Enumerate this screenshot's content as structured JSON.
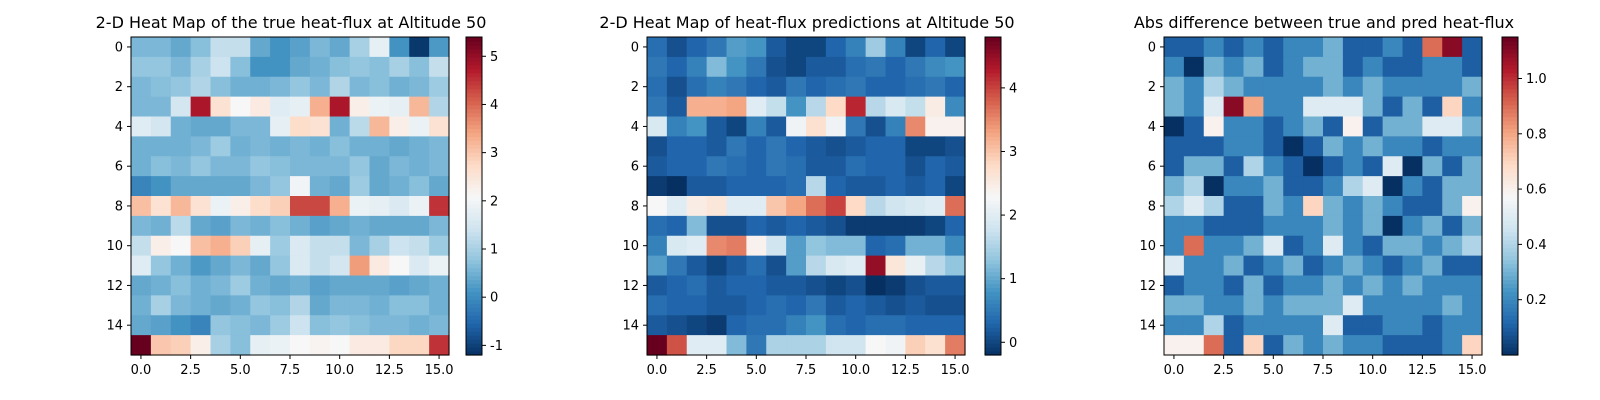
{
  "chart_data": [
    {
      "type": "heatmap",
      "title": "2-D Heat Map of the true heat-flux at Altitude 50",
      "xlabel": "",
      "ylabel": "",
      "xticks": [
        "0.0",
        "2.5",
        "5.0",
        "7.5",
        "10.0",
        "12.5",
        "15.0"
      ],
      "yticks": [
        "0",
        "2",
        "4",
        "6",
        "8",
        "10",
        "12",
        "14"
      ],
      "colorbar": {
        "colormap": "RdBu_r",
        "vmin": -1.2,
        "vmax": 5.4,
        "ticks": [
          "-1",
          "0",
          "1",
          "2",
          "3",
          "4",
          "5"
        ]
      },
      "values": [
        [
          0.6,
          0.6,
          0.4,
          0.7,
          1.3,
          1.3,
          0.4,
          0.1,
          0.3,
          0.6,
          0.4,
          1.0,
          1.8,
          0.1,
          -1.1,
          0.2
        ],
        [
          0.8,
          0.8,
          0.6,
          1.0,
          1.4,
          0.7,
          0.1,
          0.1,
          0.4,
          0.5,
          0.7,
          0.8,
          0.7,
          1.0,
          0.7,
          1.3
        ],
        [
          0.6,
          0.7,
          0.8,
          1.1,
          0.7,
          0.5,
          0.5,
          0.6,
          0.8,
          0.6,
          1.1,
          0.6,
          0.7,
          0.5,
          0.6,
          0.9
        ],
        [
          0.6,
          0.6,
          1.5,
          4.8,
          2.6,
          2.1,
          2.4,
          1.7,
          1.8,
          3.3,
          4.8,
          2.3,
          1.9,
          1.8,
          3.2,
          1.1
        ],
        [
          1.7,
          1.5,
          0.5,
          0.4,
          0.4,
          0.6,
          0.6,
          1.8,
          2.7,
          2.6,
          0.5,
          1.2,
          3.2,
          2.3,
          1.9,
          2.6
        ],
        [
          0.5,
          0.5,
          0.5,
          0.6,
          0.9,
          0.5,
          0.6,
          0.5,
          0.6,
          0.5,
          0.7,
          0.5,
          0.5,
          0.4,
          0.5,
          0.6
        ],
        [
          0.5,
          0.7,
          0.6,
          0.8,
          0.6,
          0.6,
          0.8,
          0.7,
          0.6,
          0.6,
          0.6,
          0.8,
          0.4,
          0.6,
          0.5,
          0.6
        ],
        [
          -0.1,
          0.1,
          0.4,
          0.4,
          0.4,
          0.4,
          0.6,
          0.8,
          2.0,
          0.5,
          0.4,
          0.9,
          0.4,
          0.5,
          0.7,
          0.4
        ],
        [
          3.1,
          2.6,
          3.2,
          2.6,
          1.9,
          2.3,
          2.7,
          2.9,
          4.3,
          4.3,
          3.3,
          1.9,
          1.8,
          1.6,
          1.9,
          4.5
        ],
        [
          0.6,
          0.5,
          1.2,
          0.4,
          0.3,
          0.6,
          0.5,
          0.7,
          0.5,
          0.3,
          0.4,
          0.5,
          0.4,
          0.4,
          0.4,
          0.6
        ],
        [
          1.3,
          2.3,
          2.1,
          3.1,
          3.3,
          2.9,
          1.8,
          0.9,
          1.6,
          1.3,
          1.3,
          0.6,
          1.0,
          1.4,
          1.3,
          0.9
        ],
        [
          1.7,
          0.8,
          0.5,
          0.2,
          0.4,
          0.6,
          0.4,
          0.8,
          1.6,
          1.3,
          1.5,
          3.5,
          2.4,
          2.1,
          1.6,
          1.9
        ],
        [
          0.4,
          0.5,
          0.7,
          0.5,
          0.6,
          0.9,
          0.5,
          0.4,
          0.5,
          0.3,
          0.4,
          0.4,
          0.4,
          0.3,
          0.4,
          0.5
        ],
        [
          0.5,
          1.0,
          0.6,
          0.5,
          0.4,
          0.5,
          0.8,
          0.7,
          1.1,
          0.4,
          0.6,
          0.6,
          0.5,
          0.7,
          0.7,
          0.5
        ],
        [
          0.4,
          0.3,
          0.1,
          -0.1,
          0.8,
          0.7,
          0.6,
          0.9,
          1.4,
          0.7,
          0.8,
          0.7,
          0.6,
          0.6,
          0.5,
          0.6
        ],
        [
          5.4,
          3.0,
          2.9,
          2.3,
          1.0,
          0.7,
          1.8,
          1.9,
          2.1,
          2.2,
          2.1,
          2.4,
          2.4,
          2.8,
          2.8,
          4.5
        ]
      ]
    },
    {
      "type": "heatmap",
      "title": "2-D Heat Map of heat-flux predictions at Altitude 50",
      "xlabel": "",
      "ylabel": "",
      "xticks": [
        "0.0",
        "2.5",
        "5.0",
        "7.5",
        "10.0",
        "12.5",
        "15.0"
      ],
      "yticks": [
        "0",
        "2",
        "4",
        "6",
        "8",
        "10",
        "12",
        "14"
      ],
      "colorbar": {
        "colormap": "RdBu_r",
        "vmin": -0.2,
        "vmax": 4.8,
        "ticks": [
          "0",
          "1",
          "2",
          "3",
          "4"
        ]
      },
      "values": [
        [
          0.4,
          0.1,
          0.3,
          0.5,
          0.9,
          0.8,
          0.2,
          0.0,
          0.0,
          0.3,
          0.6,
          1.4,
          0.6,
          0.0,
          0.3,
          0.0
        ],
        [
          0.5,
          0.3,
          0.6,
          1.2,
          0.8,
          0.5,
          0.1,
          0.0,
          0.2,
          0.2,
          0.4,
          0.5,
          0.3,
          0.5,
          0.7,
          0.8
        ],
        [
          0.4,
          0.1,
          0.4,
          0.6,
          0.5,
          0.3,
          0.2,
          0.5,
          0.3,
          0.4,
          0.5,
          0.3,
          0.3,
          0.4,
          0.5,
          0.3
        ],
        [
          0.5,
          0.2,
          3.2,
          3.2,
          3.3,
          2.0,
          1.7,
          0.8,
          1.6,
          2.8,
          4.2,
          1.6,
          1.9,
          1.7,
          2.5,
          0.7
        ],
        [
          1.9,
          0.6,
          0.8,
          0.2,
          0.0,
          0.6,
          0.2,
          2.2,
          2.7,
          2.2,
          0.5,
          0.1,
          0.6,
          3.5,
          2.4,
          2.4
        ],
        [
          0.1,
          0.3,
          0.3,
          0.2,
          0.5,
          0.3,
          0.5,
          0.3,
          0.2,
          0.1,
          0.2,
          0.3,
          0.3,
          0.0,
          0.0,
          0.1
        ],
        [
          0.2,
          0.3,
          0.3,
          0.5,
          0.4,
          0.3,
          0.5,
          0.4,
          0.2,
          0.2,
          0.4,
          0.3,
          0.3,
          0.1,
          0.3,
          0.2
        ],
        [
          -0.1,
          -0.2,
          0.2,
          0.2,
          0.3,
          0.3,
          0.3,
          0.4,
          1.6,
          0.3,
          0.2,
          0.2,
          0.3,
          0.2,
          0.3,
          0.0
        ],
        [
          2.3,
          2.0,
          2.5,
          2.6,
          2.0,
          2.0,
          3.0,
          3.3,
          3.7,
          4.0,
          2.8,
          1.6,
          1.8,
          1.9,
          2.0,
          3.7
        ],
        [
          0.4,
          0.3,
          1.2,
          0.1,
          0.1,
          0.3,
          0.2,
          0.3,
          0.2,
          0.1,
          -0.1,
          -0.1,
          -0.1,
          -0.1,
          0.0,
          0.3
        ],
        [
          0.6,
          1.9,
          2.0,
          3.5,
          3.6,
          2.4,
          1.8,
          0.9,
          1.3,
          1.2,
          1.2,
          0.3,
          0.4,
          1.1,
          1.1,
          0.7
        ],
        [
          0.9,
          0.5,
          0.2,
          0.0,
          0.2,
          0.4,
          0.1,
          0.9,
          1.6,
          1.9,
          2.0,
          4.5,
          2.6,
          2.1,
          1.6,
          1.3
        ],
        [
          0.2,
          0.3,
          0.4,
          0.2,
          0.3,
          0.3,
          0.2,
          0.2,
          0.1,
          0.0,
          0.1,
          -0.2,
          -0.1,
          0.1,
          0.2,
          0.2
        ],
        [
          0.4,
          0.3,
          0.3,
          0.2,
          0.2,
          0.3,
          0.4,
          0.3,
          0.5,
          0.2,
          0.3,
          0.2,
          0.1,
          0.2,
          0.1,
          0.1
        ],
        [
          0.2,
          0.1,
          0.0,
          -0.1,
          0.3,
          0.4,
          0.4,
          0.6,
          0.8,
          0.4,
          0.3,
          0.4,
          0.4,
          0.3,
          0.3,
          0.3
        ],
        [
          4.8,
          3.9,
          2.0,
          2.0,
          1.2,
          0.5,
          1.5,
          1.5,
          1.5,
          1.8,
          1.8,
          2.3,
          2.2,
          2.9,
          2.7,
          3.6
        ]
      ]
    },
    {
      "type": "heatmap",
      "title": "Abs difference between true and pred heat-flux",
      "xlabel": "",
      "ylabel": "",
      "xticks": [
        "0.0",
        "2.5",
        "5.0",
        "7.5",
        "10.0",
        "12.5",
        "15.0"
      ],
      "yticks": [
        "0",
        "2",
        "4",
        "6",
        "8",
        "10",
        "12",
        "14"
      ],
      "colorbar": {
        "colormap": "RdBu_r",
        "vmin": 0.0,
        "vmax": 1.15,
        "ticks": [
          "0.2",
          "0.4",
          "0.6",
          "0.8",
          "1.0"
        ]
      },
      "values": [
        [
          0.1,
          0.1,
          0.2,
          0.1,
          0.2,
          0.1,
          0.2,
          0.2,
          0.3,
          0.1,
          0.1,
          0.2,
          0.1,
          0.9,
          1.1,
          0.1
        ],
        [
          0.2,
          0.0,
          0.3,
          0.2,
          0.3,
          0.1,
          0.2,
          0.3,
          0.3,
          0.1,
          0.2,
          0.1,
          0.1,
          0.2,
          0.2,
          0.1
        ],
        [
          0.3,
          0.2,
          0.4,
          0.3,
          0.2,
          0.2,
          0.2,
          0.2,
          0.3,
          0.2,
          0.3,
          0.2,
          0.2,
          0.2,
          0.2,
          0.3
        ],
        [
          0.3,
          0.2,
          0.5,
          1.1,
          0.8,
          0.2,
          0.2,
          0.5,
          0.5,
          0.5,
          0.3,
          0.1,
          0.3,
          0.1,
          0.7,
          0.2
        ],
        [
          0.0,
          0.1,
          0.6,
          0.2,
          0.2,
          0.1,
          0.2,
          0.3,
          0.1,
          0.6,
          0.1,
          0.3,
          0.3,
          0.5,
          0.5,
          0.3
        ],
        [
          0.1,
          0.1,
          0.1,
          0.2,
          0.2,
          0.1,
          0.0,
          0.1,
          0.3,
          0.2,
          0.3,
          0.2,
          0.2,
          0.1,
          0.2,
          0.2
        ],
        [
          0.1,
          0.3,
          0.3,
          0.1,
          0.4,
          0.2,
          0.1,
          0.0,
          0.1,
          0.2,
          0.1,
          0.5,
          0.0,
          0.3,
          0.1,
          0.3
        ],
        [
          0.3,
          0.4,
          0.0,
          0.2,
          0.2,
          0.3,
          0.1,
          0.1,
          0.2,
          0.4,
          0.5,
          0.0,
          0.2,
          0.1,
          0.3,
          0.3
        ],
        [
          0.4,
          0.5,
          0.4,
          0.1,
          0.1,
          0.3,
          0.2,
          0.7,
          0.3,
          0.2,
          0.3,
          0.2,
          0.1,
          0.1,
          0.3,
          0.6
        ],
        [
          0.2,
          0.2,
          0.1,
          0.1,
          0.1,
          0.2,
          0.2,
          0.2,
          0.3,
          0.2,
          0.3,
          0.0,
          0.2,
          0.3,
          0.1,
          0.3
        ],
        [
          0.2,
          0.9,
          0.2,
          0.2,
          0.3,
          0.5,
          0.1,
          0.2,
          0.5,
          0.2,
          0.1,
          0.3,
          0.3,
          0.2,
          0.3,
          0.4
        ],
        [
          0.5,
          0.2,
          0.2,
          0.3,
          0.1,
          0.2,
          0.3,
          0.1,
          0.2,
          0.3,
          0.2,
          0.1,
          0.2,
          0.3,
          0.1,
          0.1
        ],
        [
          0.1,
          0.2,
          0.2,
          0.1,
          0.3,
          0.1,
          0.2,
          0.2,
          0.3,
          0.2,
          0.3,
          0.2,
          0.3,
          0.2,
          0.2,
          0.2
        ],
        [
          0.3,
          0.3,
          0.2,
          0.2,
          0.3,
          0.2,
          0.3,
          0.3,
          0.3,
          0.5,
          0.2,
          0.2,
          0.2,
          0.2,
          0.3,
          0.2
        ],
        [
          0.2,
          0.2,
          0.4,
          0.1,
          0.2,
          0.2,
          0.2,
          0.2,
          0.5,
          0.1,
          0.1,
          0.2,
          0.2,
          0.1,
          0.2,
          0.2
        ],
        [
          0.6,
          0.6,
          0.9,
          0.1,
          0.7,
          0.1,
          0.3,
          0.2,
          0.3,
          0.2,
          0.2,
          0.1,
          0.1,
          0.1,
          0.2,
          0.7
        ]
      ]
    }
  ]
}
